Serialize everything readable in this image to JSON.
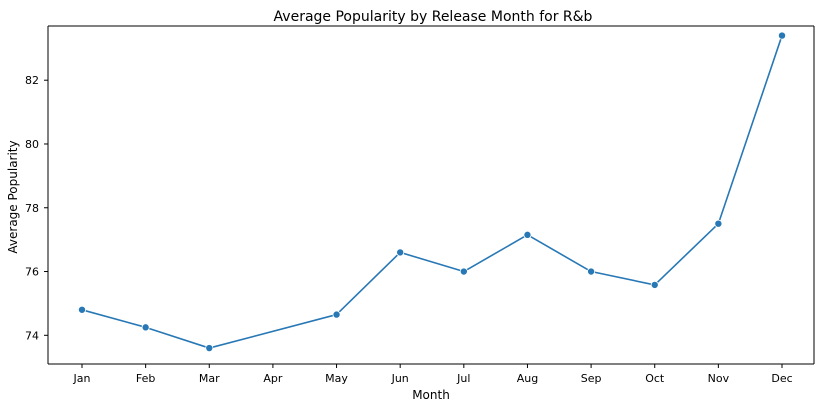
{
  "chart_data": {
    "type": "line",
    "title": "Average Popularity by Release Month for R&b",
    "xlabel": "Month",
    "ylabel": "Average Popularity",
    "categories": [
      "Jan",
      "Feb",
      "Mar",
      "Apr",
      "May",
      "Jun",
      "Jul",
      "Aug",
      "Sep",
      "Oct",
      "Nov",
      "Dec"
    ],
    "x": [
      "Jan",
      "Feb",
      "Mar",
      "May",
      "Jun",
      "Jul",
      "Aug",
      "Sep",
      "Oct",
      "Nov",
      "Dec"
    ],
    "values": [
      74.8,
      74.25,
      73.6,
      74.65,
      76.6,
      76.0,
      77.15,
      76.0,
      75.58,
      77.5,
      83.4
    ],
    "ylim": [
      73.1,
      83.7
    ],
    "yticks": [
      74,
      76,
      78,
      80,
      82
    ],
    "ytick_labels": [
      "74",
      "76",
      "78",
      "80",
      "82"
    ],
    "legend": "none",
    "grid": false,
    "line_color": "#2878b5",
    "marker_color": "#2878b5"
  }
}
